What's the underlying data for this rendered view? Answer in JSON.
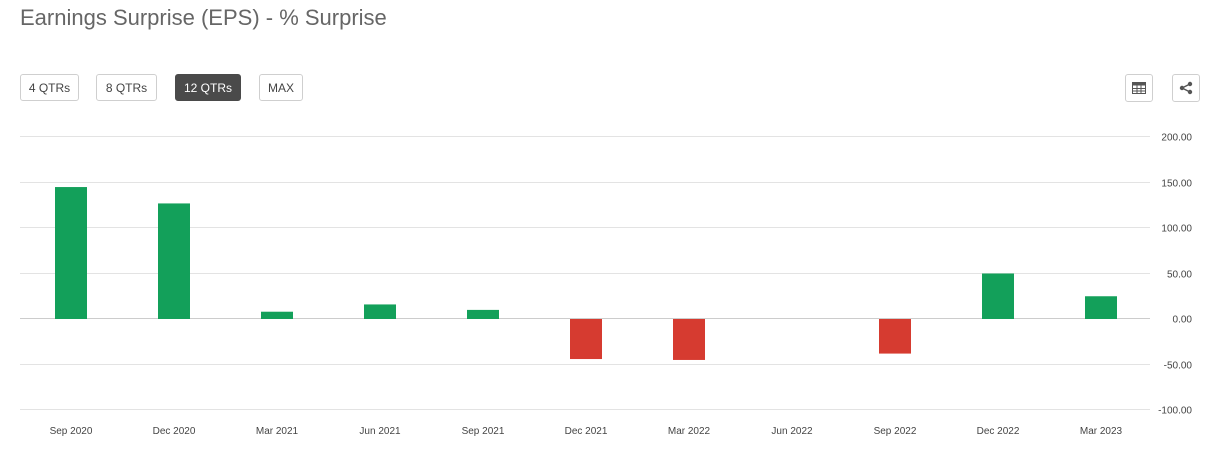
{
  "header": {
    "title": "Earnings Surprise (EPS) - % Surprise"
  },
  "range_buttons": [
    {
      "label": "4 QTRs",
      "active": false
    },
    {
      "label": "8 QTRs",
      "active": false
    },
    {
      "label": "12 QTRs",
      "active": true
    },
    {
      "label": "MAX",
      "active": false
    }
  ],
  "toolbar": {
    "table_icon": "table-icon",
    "share_icon": "share-icon"
  },
  "colors": {
    "positive": "#13a05a",
    "negative": "#d63b30",
    "grid": "#e3e3e3",
    "active_button": "#4a4a4a"
  },
  "chart_data": {
    "type": "bar",
    "title": "",
    "xlabel": "",
    "ylabel": "",
    "categories": [
      "Sep 2020",
      "Dec 2020",
      "Mar 2021",
      "Jun 2021",
      "Sep 2021",
      "Dec 2021",
      "Mar 2022",
      "Jun 2022",
      "Sep 2022",
      "Dec 2022",
      "Mar 2023"
    ],
    "values": [
      145,
      127,
      8,
      16,
      10,
      -44,
      -45,
      0,
      -38,
      50,
      25
    ],
    "ylim": [
      -100,
      200
    ],
    "yticks": [
      "200.00",
      "150.00",
      "100.00",
      "50.00",
      "0.00",
      "-50.00",
      "-100.00"
    ],
    "y_axis_position": "right",
    "grid": true,
    "legend": "none"
  }
}
